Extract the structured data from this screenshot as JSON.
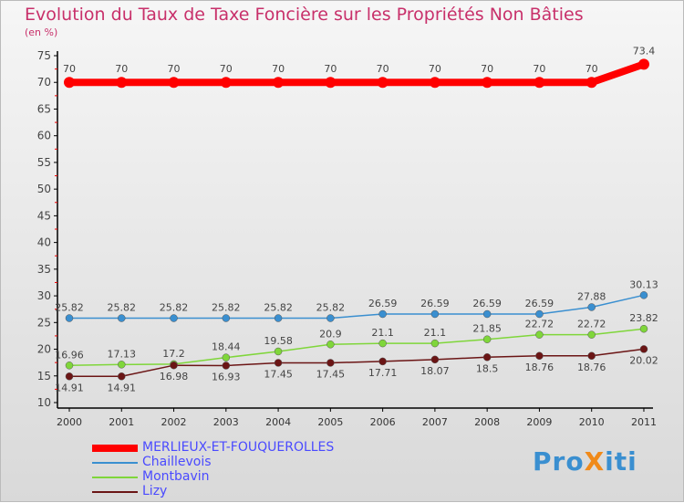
{
  "chart_data": {
    "type": "line",
    "title": "Evolution du Taux de Taxe Foncière sur les Propriétés Non Bâties",
    "ylabel": "(en %)",
    "xlabel": "",
    "ylim": [
      10,
      75
    ],
    "yticks": [
      10,
      15,
      20,
      25,
      30,
      35,
      40,
      45,
      50,
      55,
      60,
      65,
      70,
      75
    ],
    "x": [
      2000,
      2001,
      2002,
      2003,
      2004,
      2005,
      2006,
      2007,
      2008,
      2009,
      2010,
      2011
    ],
    "legend_position": "bottom-left",
    "series": [
      {
        "name": "MERLIEUX-ET-FOUQUEROLLES",
        "color": "#ff0000",
        "values": [
          70,
          70,
          70,
          70,
          70,
          70,
          70,
          70,
          70,
          70,
          70,
          73.4
        ]
      },
      {
        "name": "Chaillevois",
        "color": "#3a8fd0",
        "values": [
          25.82,
          25.82,
          25.82,
          25.82,
          25.82,
          25.82,
          26.59,
          26.59,
          26.59,
          26.59,
          27.88,
          30.13
        ]
      },
      {
        "name": "Montbavin",
        "color": "#7fd63a",
        "values": [
          16.96,
          17.13,
          17.2,
          18.44,
          19.58,
          20.9,
          21.1,
          21.1,
          21.85,
          22.72,
          22.72,
          23.82
        ]
      },
      {
        "name": "Lizy",
        "color": "#6b1515",
        "values": [
          14.91,
          14.91,
          16.98,
          16.93,
          17.45,
          17.45,
          17.71,
          18.07,
          18.5,
          18.76,
          18.76,
          20.02
        ]
      }
    ]
  },
  "logo": "ProXiti"
}
